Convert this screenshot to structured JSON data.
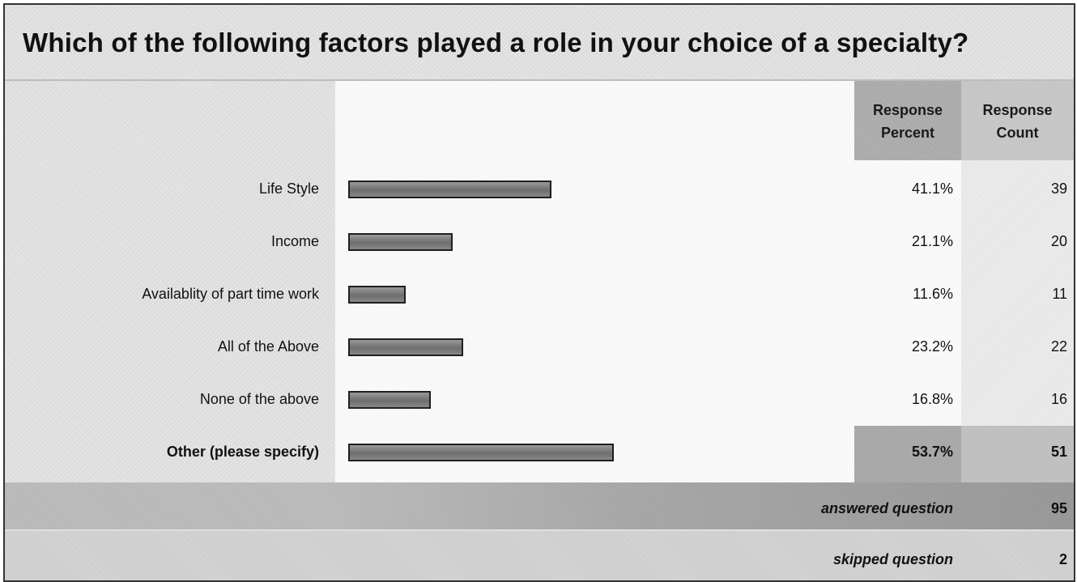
{
  "title": "Which of the following factors played a role in your choice of a specialty?",
  "header": {
    "percent_line1": "Response",
    "percent_line2": "Percent",
    "count_line1": "Response",
    "count_line2": "Count"
  },
  "chart_data": {
    "type": "bar",
    "orientation": "horizontal",
    "title": "Which of the following factors played a role in your choice of a specialty?",
    "categories": [
      "Life Style",
      "Income",
      "Availablity of part time work",
      "All of the Above",
      "None of the above",
      "Other (please specify)"
    ],
    "percent_labels": [
      "41.1%",
      "21.1%",
      "11.6%",
      "23.2%",
      "16.8%",
      "53.7%"
    ],
    "values": [
      41.1,
      21.1,
      11.6,
      23.2,
      16.8,
      53.7
    ],
    "counts": [
      "39",
      "20",
      "11",
      "22",
      "16",
      "51"
    ],
    "xlim": [
      0,
      100
    ],
    "highlighted_category": "Other (please specify)"
  },
  "footer": {
    "answered_label": "answered question",
    "answered_value": "95",
    "skipped_label": "skipped question",
    "skipped_value": "2"
  },
  "colors": {
    "bar_fill": "#7f7f7f",
    "bar_border": "#1f1f1f",
    "header_fill": "#a9a9a9"
  }
}
